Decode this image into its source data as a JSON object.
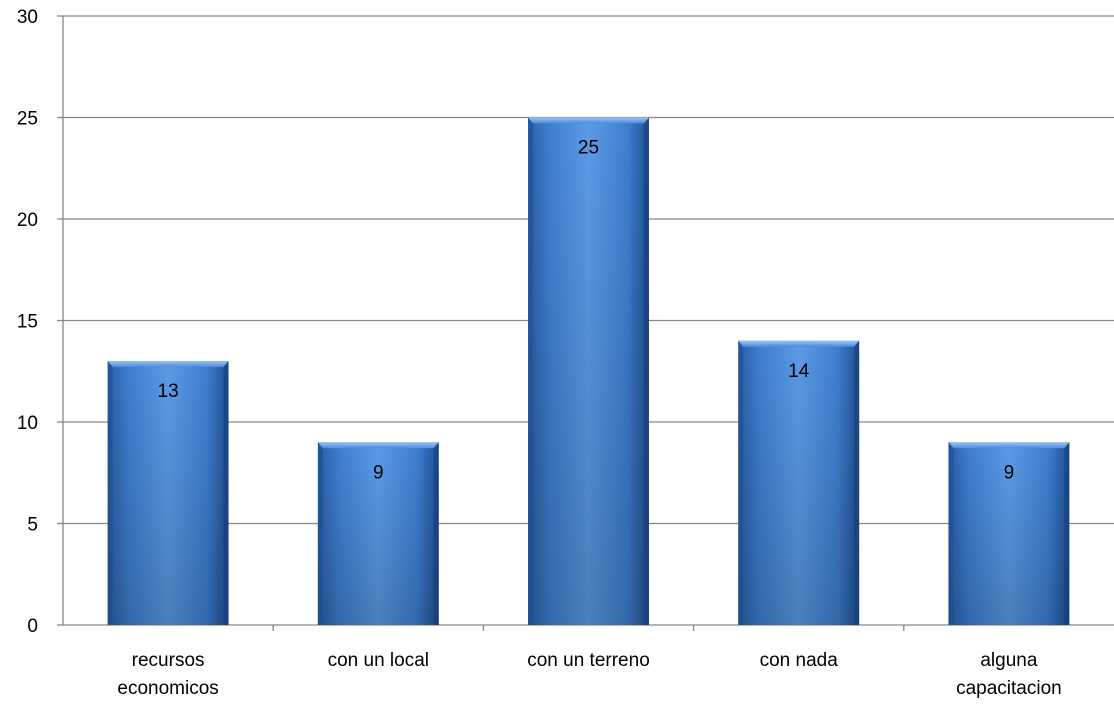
{
  "chart_data": {
    "type": "bar",
    "title": "",
    "xlabel": "",
    "ylabel": "",
    "categories": [
      [
        "recursos",
        "economicos"
      ],
      [
        "con un local"
      ],
      [
        "con un terreno"
      ],
      [
        "con nada"
      ],
      [
        "alguna",
        "capacitacion"
      ]
    ],
    "values": [
      13,
      9,
      25,
      14,
      9
    ],
    "data_labels": [
      "13",
      "9",
      "25",
      "14",
      "9"
    ],
    "ylim": [
      0,
      30
    ],
    "y_ticks": [
      0,
      5,
      10,
      15,
      20,
      25,
      30
    ],
    "grid": true,
    "legend": "none",
    "colors": {
      "bar_light": "#5b9be6",
      "bar_mid": "#3f7fd0",
      "bar_dark": "#1f4f94",
      "grid": "#868686"
    }
  }
}
